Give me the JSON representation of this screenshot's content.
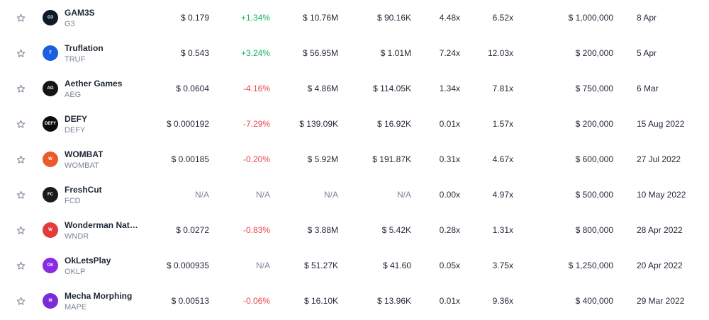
{
  "rows": [
    {
      "name": "GAM3S",
      "symbol": "G3",
      "logo_text": "G3",
      "logo_bg": "#0f1a2b",
      "price": "$ 0.179",
      "change": "+1.34%",
      "change_dir": "pos",
      "market_cap": "$ 10.76M",
      "volume": "$ 90.16K",
      "roi_1": "4.48x",
      "roi_2": "6.52x",
      "raise": "$ 1,000,000",
      "date": "8 Apr"
    },
    {
      "name": "Truflation",
      "symbol": "TRUF",
      "logo_text": "T",
      "logo_bg": "#1b5fe0",
      "price": "$ 0.543",
      "change": "+3.24%",
      "change_dir": "pos",
      "market_cap": "$ 56.95M",
      "volume": "$ 1.01M",
      "roi_1": "7.24x",
      "roi_2": "12.03x",
      "raise": "$ 200,000",
      "date": "5 Apr"
    },
    {
      "name": "Aether Games",
      "symbol": "AEG",
      "logo_text": "AG",
      "logo_bg": "#141414",
      "price": "$ 0.0604",
      "change": "-4.16%",
      "change_dir": "neg",
      "market_cap": "$ 4.86M",
      "volume": "$ 114.05K",
      "roi_1": "1.34x",
      "roi_2": "7.81x",
      "raise": "$ 750,000",
      "date": "6 Mar"
    },
    {
      "name": "DEFY",
      "symbol": "DEFY",
      "logo_text": "DEFY",
      "logo_bg": "#0d0d0d",
      "price": "$ 0.000192",
      "change": "-7.29%",
      "change_dir": "neg",
      "market_cap": "$ 139.09K",
      "volume": "$ 16.92K",
      "roi_1": "0.01x",
      "roi_2": "1.57x",
      "raise": "$ 200,000",
      "date": "15 Aug 2022"
    },
    {
      "name": "WOMBAT",
      "symbol": "WOMBAT",
      "logo_text": "W",
      "logo_bg": "#ea5a2b",
      "price": "$ 0.00185",
      "change": "-0.20%",
      "change_dir": "neg",
      "market_cap": "$ 5.92M",
      "volume": "$ 191.87K",
      "roi_1": "0.31x",
      "roi_2": "4.67x",
      "raise": "$ 600,000",
      "date": "27 Jul 2022"
    },
    {
      "name": "FreshCut",
      "symbol": "FCD",
      "logo_text": "FC",
      "logo_bg": "#1a1a1a",
      "price": "N/A",
      "change": "N/A",
      "change_dir": "na",
      "market_cap": "N/A",
      "volume": "N/A",
      "roi_1": "0.00x",
      "roi_2": "4.97x",
      "raise": "$ 500,000",
      "date": "10 May 2022"
    },
    {
      "name": "Wonderman Nation",
      "symbol": "WNDR",
      "logo_text": "W",
      "logo_bg": "#e23b3b",
      "price": "$ 0.0272",
      "change": "-0.83%",
      "change_dir": "neg",
      "market_cap": "$ 3.88M",
      "volume": "$ 5.42K",
      "roi_1": "0.28x",
      "roi_2": "1.31x",
      "raise": "$ 800,000",
      "date": "28 Apr 2022"
    },
    {
      "name": "OkLetsPlay",
      "symbol": "OKLP",
      "logo_text": "OK",
      "logo_bg": "#8a2be2",
      "price": "$ 0.000935",
      "change": "N/A",
      "change_dir": "na",
      "market_cap": "$ 51.27K",
      "volume": "$ 41.60",
      "roi_1": "0.05x",
      "roi_2": "3.75x",
      "raise": "$ 1,250,000",
      "date": "20 Apr 2022"
    },
    {
      "name": "Mecha Morphing",
      "symbol": "MAPE",
      "logo_text": "M",
      "logo_bg": "#7b2cd6",
      "price": "$ 0.00513",
      "change": "-0.06%",
      "change_dir": "neg",
      "market_cap": "$ 16.10K",
      "volume": "$ 13.96K",
      "roi_1": "0.01x",
      "roi_2": "9.36x",
      "raise": "$ 400,000",
      "date": "29 Mar 2022"
    }
  ],
  "colors": {
    "positive": "#16b364",
    "negative": "#e5484d",
    "muted": "#7b8597"
  },
  "icons": {
    "favorite": "star-outline-icon"
  }
}
